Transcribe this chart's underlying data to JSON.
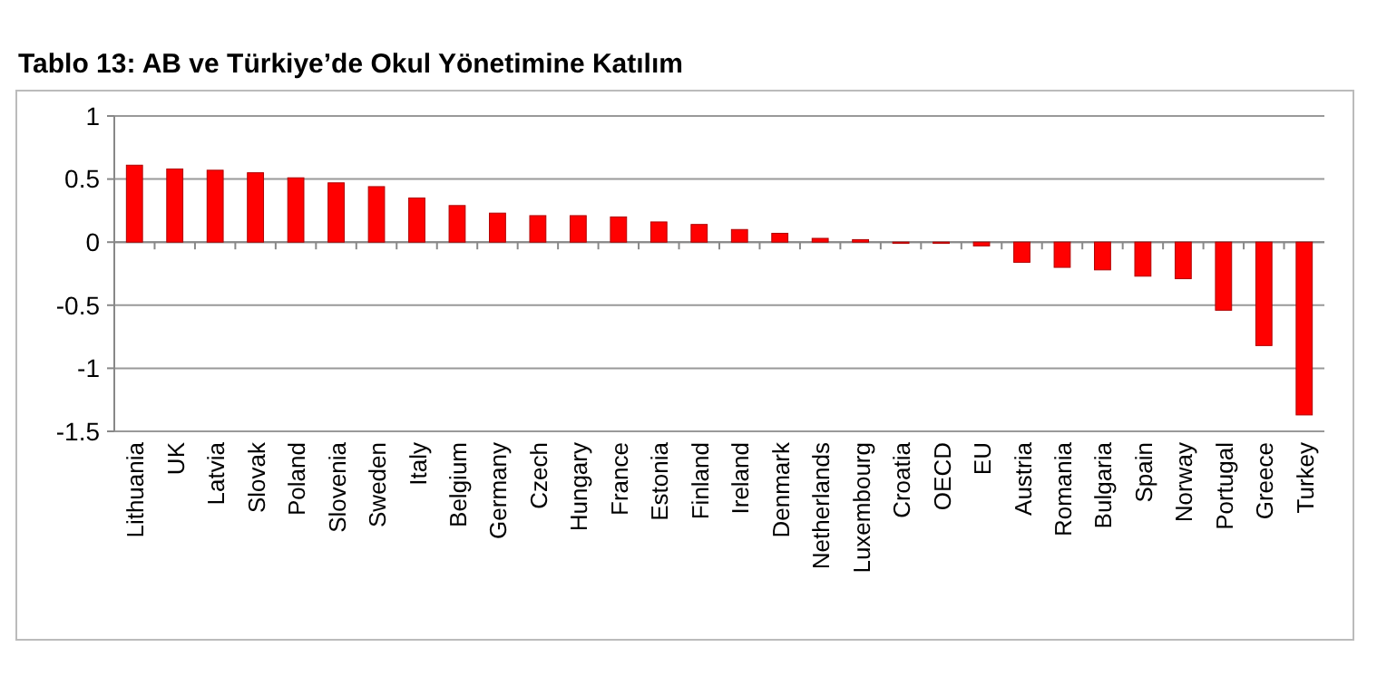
{
  "chart_data": {
    "type": "bar",
    "title": "Tablo 13: AB ve Türkiye’de Okul Yönetimine Katılım",
    "categories": [
      "Lithuania",
      "UK",
      "Latvia",
      "Slovak",
      "Poland",
      "Slovenia",
      "Sweden",
      "Italy",
      "Belgium",
      "Germany",
      "Czech",
      "Hungary",
      "France",
      "Estonia",
      "Finland",
      "Ireland",
      "Denmark",
      "Netherlands",
      "Luxembourg",
      "Croatia",
      "OECD",
      "EU",
      "Austria",
      "Romania",
      "Bulgaria",
      "Spain",
      "Norway",
      "Portugal",
      "Greece",
      "Turkey"
    ],
    "values": [
      0.61,
      0.58,
      0.57,
      0.55,
      0.51,
      0.47,
      0.44,
      0.35,
      0.29,
      0.23,
      0.21,
      0.21,
      0.2,
      0.16,
      0.14,
      0.1,
      0.07,
      0.03,
      0.02,
      -0.01,
      -0.01,
      -0.03,
      -0.16,
      -0.2,
      -0.22,
      -0.27,
      -0.29,
      -0.54,
      -0.82,
      -1.37
    ],
    "color": "#ff0000",
    "ylim": [
      -1.5,
      1
    ],
    "yticks": [
      -1.5,
      -1,
      -0.5,
      0,
      0.5,
      1
    ],
    "grid": "y"
  }
}
